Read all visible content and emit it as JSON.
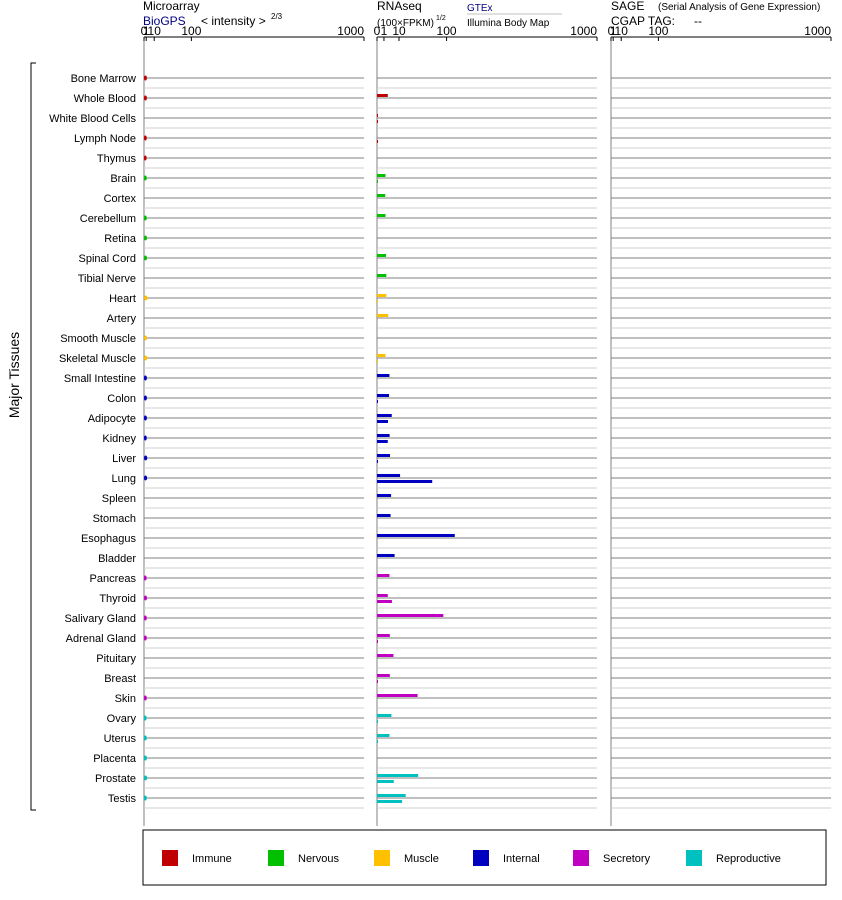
{
  "chart_data": {
    "type": "bar",
    "title": "Major Tissues",
    "tissues": [
      {
        "name": "Bone Marrow",
        "group": "Immune",
        "biogps": 1.5,
        "gtex": null,
        "ibm": null
      },
      {
        "name": "Whole Blood",
        "group": "Immune",
        "biogps": 1.5,
        "gtex": 2.4,
        "ibm": null
      },
      {
        "name": "White Blood Cells",
        "group": "Immune",
        "biogps": null,
        "gtex": 0.01,
        "ibm": 0.01
      },
      {
        "name": "Lymph Node",
        "group": "Immune",
        "biogps": 1.4,
        "gtex": null,
        "ibm": 0.01
      },
      {
        "name": "Thymus",
        "group": "Immune",
        "biogps": 1.3,
        "gtex": null,
        "ibm": null
      },
      {
        "name": "Brain",
        "group": "Nervous",
        "biogps": 1.4,
        "gtex": 1.5,
        "ibm": 0.01
      },
      {
        "name": "Cortex",
        "group": "Nervous",
        "biogps": null,
        "gtex": 1.4,
        "ibm": null
      },
      {
        "name": "Cerebellum",
        "group": "Nervous",
        "biogps": 1.4,
        "gtex": 1.5,
        "ibm": null
      },
      {
        "name": "Retina",
        "group": "Nervous",
        "biogps": 1.6,
        "gtex": null,
        "ibm": null
      },
      {
        "name": "Spinal Cord",
        "group": "Nervous",
        "biogps": 1.6,
        "gtex": 1.7,
        "ibm": null
      },
      {
        "name": "Tibial Nerve",
        "group": "Nervous",
        "biogps": null,
        "gtex": 1.8,
        "ibm": null
      },
      {
        "name": "Heart",
        "group": "Muscle",
        "biogps": 2.1,
        "gtex": 1.8,
        "ibm": 0.01
      },
      {
        "name": "Artery",
        "group": "Muscle",
        "biogps": null,
        "gtex": 2.6,
        "ibm": null
      },
      {
        "name": "Smooth Muscle",
        "group": "Muscle",
        "biogps": 1.6,
        "gtex": null,
        "ibm": null
      },
      {
        "name": "Skeletal Muscle",
        "group": "Muscle",
        "biogps": 1.9,
        "gtex": 1.5,
        "ibm": 0.01
      },
      {
        "name": "Small Intestine",
        "group": "Internal",
        "biogps": 1.5,
        "gtex": 3.2,
        "ibm": null
      },
      {
        "name": "Colon",
        "group": "Internal",
        "biogps": 1.5,
        "gtex": 3.0,
        "ibm": 0.01
      },
      {
        "name": "Adipocyte",
        "group": "Internal",
        "biogps": 1.5,
        "gtex": 4.5,
        "ibm": 2.5
      },
      {
        "name": "Kidney",
        "group": "Internal",
        "biogps": 1.4,
        "gtex": 3.3,
        "ibm": 2.4
      },
      {
        "name": "Liver",
        "group": "Internal",
        "biogps": 1.8,
        "gtex": 3.5,
        "ibm": 0.01
      },
      {
        "name": "Lung",
        "group": "Internal",
        "biogps": 1.7,
        "gtex": 11,
        "ibm": 63
      },
      {
        "name": "Spleen",
        "group": "Internal",
        "biogps": null,
        "gtex": 4.1,
        "ibm": null
      },
      {
        "name": "Stomach",
        "group": "Internal",
        "biogps": null,
        "gtex": 3.8,
        "ibm": null
      },
      {
        "name": "Esophagus",
        "group": "Internal",
        "biogps": null,
        "gtex": 125,
        "ibm": null
      },
      {
        "name": "Bladder",
        "group": "Internal",
        "biogps": null,
        "gtex": 6.4,
        "ibm": null
      },
      {
        "name": "Pancreas",
        "group": "Secretory",
        "biogps": 1.3,
        "gtex": 3.2,
        "ibm": null
      },
      {
        "name": "Thyroid",
        "group": "Secretory",
        "biogps": 1.6,
        "gtex": 2.4,
        "ibm": 4.6
      },
      {
        "name": "Salivary Gland",
        "group": "Secretory",
        "biogps": 1.4,
        "gtex": 91,
        "ibm": null
      },
      {
        "name": "Adrenal Gland",
        "group": "Secretory",
        "biogps": 1.4,
        "gtex": 3.4,
        "ibm": 0.01
      },
      {
        "name": "Pituitary",
        "group": "Secretory",
        "biogps": null,
        "gtex": 5.6,
        "ibm": null
      },
      {
        "name": "Breast",
        "group": "Secretory",
        "biogps": null,
        "gtex": 3.4,
        "ibm": 0.01
      },
      {
        "name": "Skin",
        "group": "Secretory",
        "biogps": 1.4,
        "gtex": 34,
        "ibm": null
      },
      {
        "name": "Ovary",
        "group": "Reproductive",
        "biogps": 1.3,
        "gtex": 4.3,
        "ibm": 0.01
      },
      {
        "name": "Uterus",
        "group": "Reproductive",
        "biogps": 1.4,
        "gtex": 3.2,
        "ibm": 0.01
      },
      {
        "name": "Placenta",
        "group": "Reproductive",
        "biogps": 1.5,
        "gtex": null,
        "ibm": null
      },
      {
        "name": "Prostate",
        "group": "Reproductive",
        "biogps": 1.7,
        "gtex": 35,
        "ibm": 5.8
      },
      {
        "name": "Testis",
        "group": "Reproductive",
        "biogps": 1.4,
        "gtex": 17,
        "ibm": 13
      }
    ],
    "groups": [
      {
        "name": "Immune",
        "color": "#c00000"
      },
      {
        "name": "Nervous",
        "color": "#00c000"
      },
      {
        "name": "Muscle",
        "color": "#ffc000"
      },
      {
        "name": "Internal",
        "color": "#0000c0"
      },
      {
        "name": "Secretory",
        "color": "#c000c0"
      },
      {
        "name": "Reproductive",
        "color": "#00c0c0"
      }
    ],
    "panels": [
      {
        "id": "microarray",
        "title": "Microarray",
        "subtitle": "BioGPS",
        "scale_label": "< intensity >",
        "scale_exponent": "2/3",
        "scale_power": 0.6667,
        "ticks": [
          "0",
          "1",
          "10",
          "100",
          "1000"
        ],
        "tick_values": [
          0,
          1,
          10,
          100,
          1000
        ],
        "xlim": [
          0,
          1000
        ]
      },
      {
        "id": "rnaseq",
        "title": "RNAseq",
        "scale_label": "(100×FPKM)",
        "scale_exponent": "1/2",
        "scale_power": 0.5,
        "source1": "GTEx",
        "source2": "Illumina Body Map",
        "ticks": [
          "0",
          "1",
          "10",
          "100",
          "1000"
        ],
        "tick_values": [
          0,
          1,
          10,
          100,
          1000
        ],
        "xlim": [
          0,
          1000
        ]
      },
      {
        "id": "sage",
        "title": "SAGE",
        "subtitle_note": "(Serial Analysis of Gene Expression)",
        "tag_label": "CGAP  TAG:",
        "tag_value": "--",
        "ticks": [
          "0",
          "1",
          "10",
          "100",
          "1000"
        ],
        "tick_values": [
          0,
          1,
          10,
          100,
          1000
        ],
        "xlim": [
          0,
          1000
        ]
      }
    ],
    "ylabel": "Major Tissues"
  },
  "colors": {
    "biogps_link": "#000080",
    "gtex_link": "#000080",
    "row_line": "#808080",
    "row_line_light": "#c0c0c0"
  }
}
